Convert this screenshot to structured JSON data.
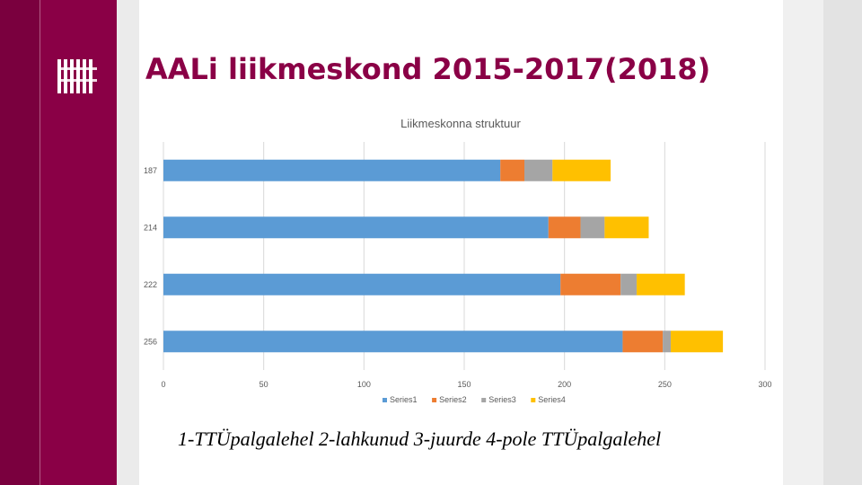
{
  "slide": {
    "title": "AALi liikmeskond 2015-2017(2018)",
    "caption": "1-TTÜpalgalehel 2-lahkunud 3-juurde 4-pole TTÜpalgalehel"
  },
  "icons": {
    "logo": "university-logo"
  },
  "colors": {
    "brand": "#8a0046",
    "series": [
      "#5b9bd5",
      "#ed7d31",
      "#a5a5a5",
      "#ffc000"
    ]
  },
  "chart_data": {
    "type": "bar",
    "orientation": "horizontal",
    "stacked": true,
    "title": "Liikmeskonna struktuur",
    "categories": [
      "187",
      "214",
      "222",
      "256"
    ],
    "series": [
      {
        "name": "Series1",
        "values": [
          168,
          192,
          198,
          229
        ]
      },
      {
        "name": "Series2",
        "values": [
          12,
          16,
          30,
          20
        ]
      },
      {
        "name": "Series3",
        "values": [
          14,
          12,
          8,
          4
        ]
      },
      {
        "name": "Series4",
        "values": [
          29,
          22,
          24,
          26
        ]
      }
    ],
    "xlim": [
      0,
      300
    ],
    "xticks": [
      0,
      50,
      100,
      150,
      200,
      250,
      300
    ],
    "grid": true,
    "legend": "bottom"
  }
}
